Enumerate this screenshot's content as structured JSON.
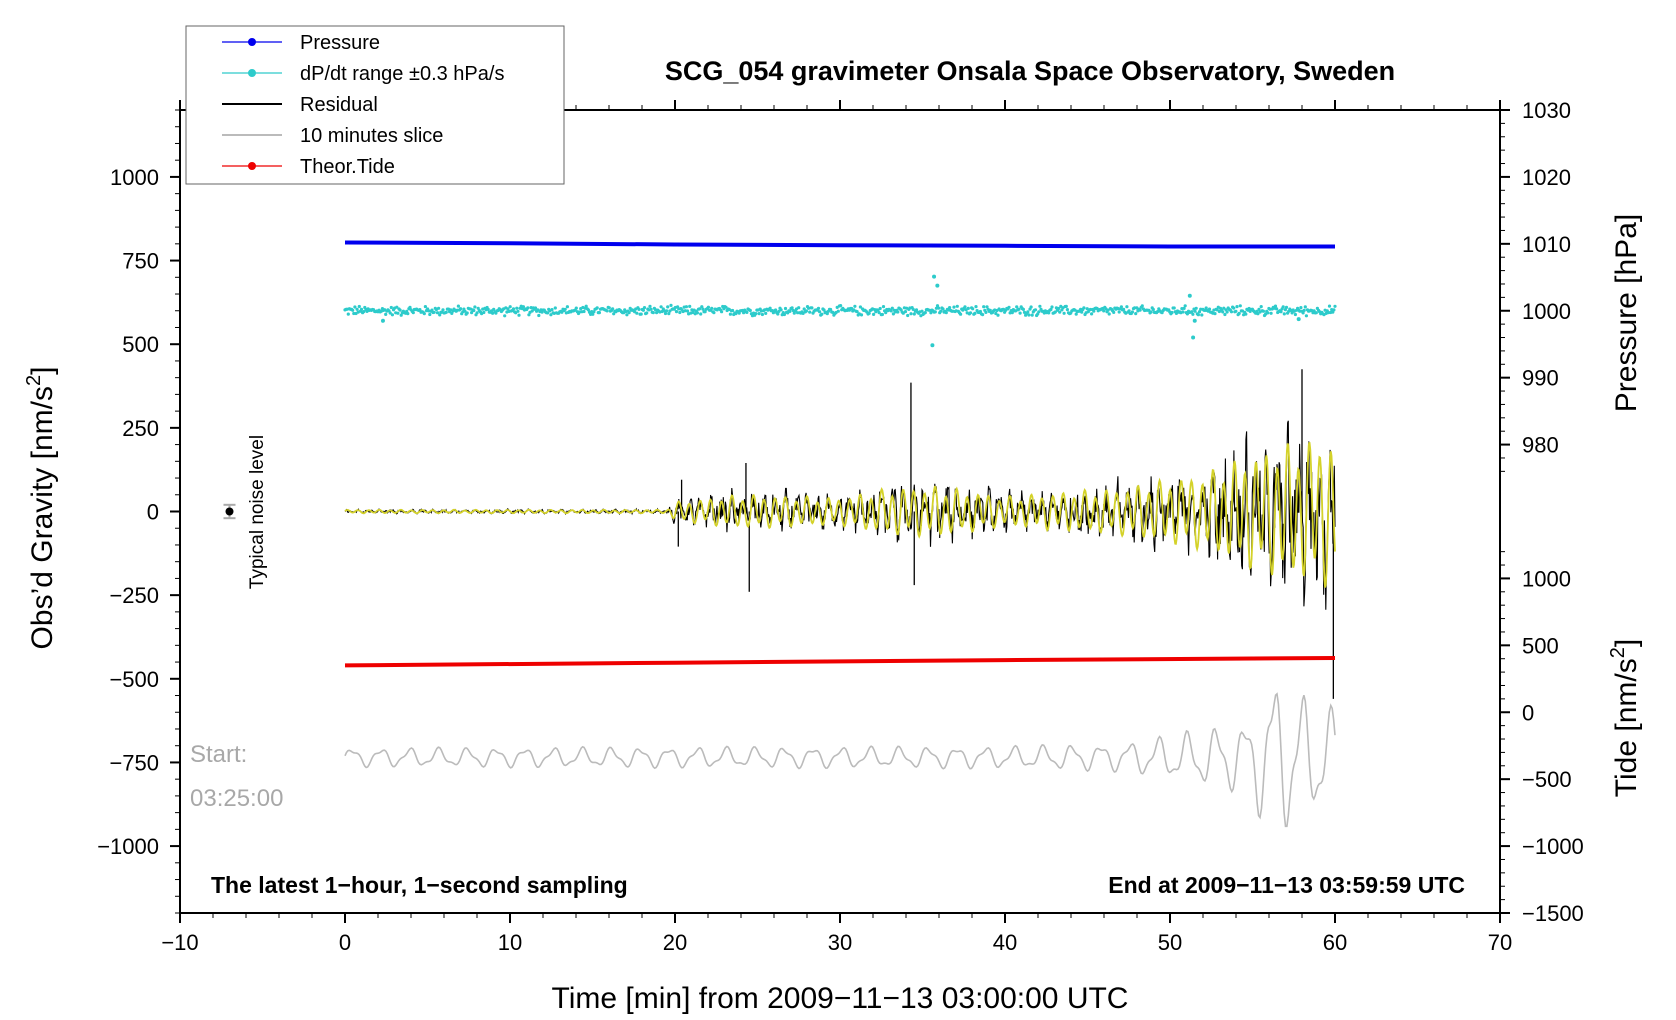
{
  "chart_data": {
    "type": "line",
    "title": "SCG_054 gravimeter Onsala Space Observatory, Sweden",
    "xlabel": "Time [min] from 2009−11−13 03:00:00 UTC",
    "ylabel_left": "Obs’d Gravity [nm/s",
    "ylabel_left_sup": "2",
    "ylabel_left_end": "]",
    "ylabel_right_pressure": "Pressure [hPa]",
    "ylabel_right_tide": "Tide [nm/s",
    "ylabel_right_tide_sup": "2",
    "ylabel_right_tide_end": "]",
    "xlim": [
      -10,
      70
    ],
    "ylim": [
      -1200,
      1200
    ],
    "pressure_axis_range": [
      1030,
      910
    ],
    "tide_axis_range": [
      -1500,
      4500
    ],
    "x_ticks": [
      "−10",
      "0",
      "10",
      "20",
      "30",
      "40",
      "50",
      "60",
      "70"
    ],
    "x_tick_values": [
      -10,
      0,
      10,
      20,
      30,
      40,
      50,
      60,
      70
    ],
    "y_left_ticks": [
      "1000",
      "750",
      "500",
      "250",
      "0",
      "−250",
      "−500",
      "−750",
      "−1000"
    ],
    "y_left_tick_values": [
      1000,
      750,
      500,
      250,
      0,
      -250,
      -500,
      -750,
      -1000
    ],
    "pressure_ticks": [
      "1030",
      "1020",
      "1010",
      "1000",
      "990",
      "980"
    ],
    "pressure_tick_values": [
      1030,
      1020,
      1010,
      1000,
      990,
      980
    ],
    "tide_ticks": [
      "1000",
      "500",
      "0",
      "−500",
      "−1000",
      "−1500"
    ],
    "tide_tick_values": [
      1000,
      500,
      0,
      -500,
      -1000,
      -1500
    ],
    "series": [
      {
        "name": "Pressure",
        "color": "#0000ee",
        "kind": "line-dot",
        "axis": "pressure",
        "x": [
          0,
          10,
          20,
          30,
          40,
          50,
          60
        ],
        "values": [
          1010.2,
          1010.1,
          1009.9,
          1009.8,
          1009.7,
          1009.6,
          1009.6
        ]
      },
      {
        "name": "dP/dt range ±0.3 hPa/s",
        "color": "#2dcbcb",
        "kind": "scatter",
        "axis": "gravity",
        "center": 600,
        "spread": 12,
        "x_range": [
          0,
          60
        ],
        "outliers": [
          {
            "x": 2.3,
            "y": 570
          },
          {
            "x": 35.7,
            "y": 702
          },
          {
            "x": 35.9,
            "y": 675
          },
          {
            "x": 35.6,
            "y": 497
          },
          {
            "x": 51.2,
            "y": 645
          },
          {
            "x": 51.5,
            "y": 570
          },
          {
            "x": 51.4,
            "y": 520
          },
          {
            "x": 57.8,
            "y": 575
          }
        ]
      },
      {
        "name": "Residual",
        "color": "#000000",
        "kind": "line",
        "axis": "gravity",
        "x_range": [
          0,
          60
        ],
        "envelope": [
          {
            "x": 0,
            "a": 8
          },
          {
            "x": 19.5,
            "a": 8
          },
          {
            "x": 20,
            "a": 45
          },
          {
            "x": 24,
            "a": 80
          },
          {
            "x": 30,
            "a": 65
          },
          {
            "x": 33,
            "a": 110
          },
          {
            "x": 36,
            "a": 120
          },
          {
            "x": 40,
            "a": 70
          },
          {
            "x": 43,
            "a": 90
          },
          {
            "x": 47,
            "a": 110
          },
          {
            "x": 52,
            "a": 180
          },
          {
            "x": 56,
            "a": 300
          },
          {
            "x": 60,
            "a": 360
          }
        ],
        "spikes": [
          {
            "x": 20.2,
            "y": -105
          },
          {
            "x": 20.4,
            "y": 95
          },
          {
            "x": 24.3,
            "y": 145
          },
          {
            "x": 24.5,
            "y": -240
          },
          {
            "x": 34.3,
            "y": 385
          },
          {
            "x": 34.5,
            "y": -220
          },
          {
            "x": 58.0,
            "y": 425
          },
          {
            "x": 59.9,
            "y": -560
          }
        ]
      },
      {
        "name": "Residual (filtered)",
        "color": "#d4d22a",
        "kind": "line",
        "axis": "gravity",
        "x_range": [
          0,
          60
        ],
        "scale": 0.65
      },
      {
        "name": "Theor.Tide",
        "color": "#ee0000",
        "kind": "line-dot",
        "axis": "gravity",
        "x": [
          0,
          20,
          40,
          60
        ],
        "values": [
          -460,
          -452,
          -444,
          -438
        ]
      },
      {
        "name": "10 minutes slice",
        "color": "#bbbbbb",
        "kind": "line",
        "axis": "gravity",
        "x_range": [
          0,
          60
        ],
        "base": -735,
        "envelope": [
          {
            "x": 0,
            "a": 30
          },
          {
            "x": 40,
            "a": 35
          },
          {
            "x": 47,
            "a": 45
          },
          {
            "x": 50,
            "a": 70
          },
          {
            "x": 55,
            "a": 120
          },
          {
            "x": 56,
            "a": 270
          },
          {
            "x": 58,
            "a": 200
          },
          {
            "x": 60,
            "a": 150
          }
        ]
      }
    ],
    "legend": [
      {
        "label": "Pressure",
        "color": "#0000ee",
        "marker": true
      },
      {
        "label": "dP/dt range ±0.3 hPa/s",
        "color": "#2dcbcb",
        "marker": true
      },
      {
        "label": "Residual",
        "color": "#000000",
        "marker": false
      },
      {
        "label": "10 minutes slice",
        "color": "#bbbbbb",
        "marker": false
      },
      {
        "label": "Theor.Tide",
        "color": "#ee0000",
        "marker": true
      }
    ],
    "legend_position": "top-left",
    "annotations": {
      "bottom_left": "The latest 1−hour, 1−second sampling",
      "bottom_right": "End at 2009−11−13 03:59:59 UTC",
      "start_label": "Start:",
      "start_time": "03:25:00",
      "noise_label": "Typical noise level",
      "noise_x": -7,
      "noise_y": 0,
      "noise_err": 20
    }
  }
}
